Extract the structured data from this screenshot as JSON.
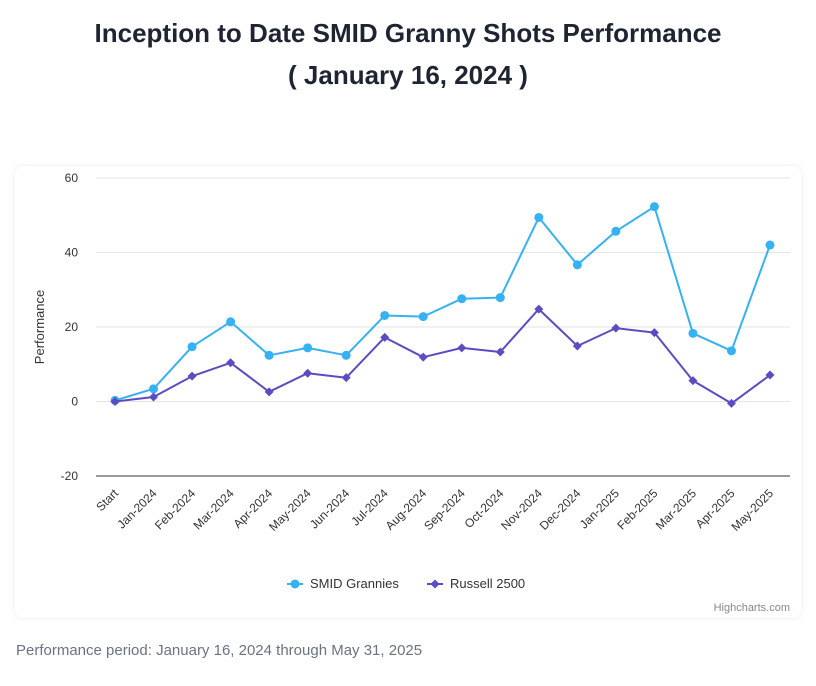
{
  "header": {
    "title_line1": "Inception to Date SMID Granny Shots Performance",
    "title_line2": "( January 16, 2024 )"
  },
  "footer": {
    "period_text": "Performance period: January 16, 2024 through May 31, 2025"
  },
  "credits": "Highcharts.com",
  "colors": {
    "smid": "#36b1f2",
    "russell": "#5b4cc1",
    "grid": "#e6e6e6",
    "axis": "#333333"
  },
  "chart_data": {
    "type": "line",
    "title": "Inception to Date SMID Granny Shots Performance",
    "subtitle": "( January 16, 2024 )",
    "xlabel": "",
    "ylabel": "Performance",
    "ylim": [
      -20,
      60
    ],
    "yticks": [
      -20,
      0,
      20,
      40,
      60
    ],
    "legend_position": "bottom-center",
    "categories": [
      "Start",
      "Jan-2024",
      "Feb-2024",
      "Mar-2024",
      "Apr-2024",
      "May-2024",
      "Jun-2024",
      "Jul-2024",
      "Aug-2024",
      "Sep-2024",
      "Oct-2024",
      "Nov-2024",
      "Dec-2024",
      "Jan-2025",
      "Feb-2025",
      "Mar-2025",
      "Apr-2025",
      "May-2025"
    ],
    "series": [
      {
        "name": "SMID Grannies",
        "marker": "circle",
        "values": [
          0.3,
          3.4,
          14.7,
          21.4,
          12.4,
          14.4,
          12.4,
          23.1,
          22.8,
          27.6,
          27.9,
          49.4,
          36.7,
          45.7,
          52.3,
          18.3,
          13.6,
          42.0
        ]
      },
      {
        "name": "Russell 2500",
        "marker": "diamond",
        "values": [
          0.0,
          1.2,
          6.8,
          10.4,
          2.6,
          7.6,
          6.4,
          17.2,
          11.9,
          14.4,
          13.3,
          24.8,
          14.9,
          19.7,
          18.5,
          5.6,
          -0.5,
          7.1
        ]
      }
    ]
  }
}
